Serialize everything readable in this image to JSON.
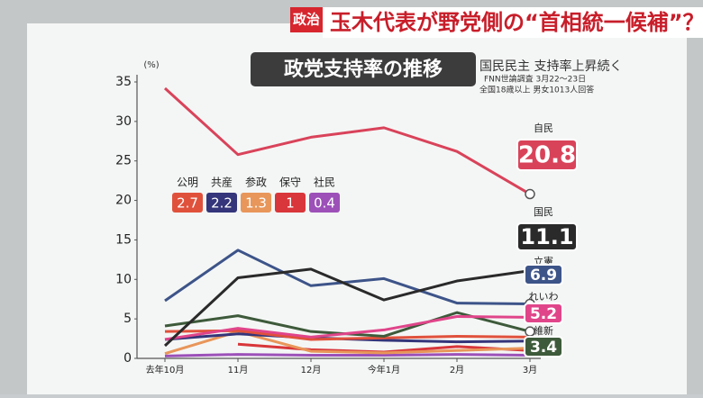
{
  "header": {
    "tag": "政治",
    "headline": "玉木代表が野党側の“首相統一候補”？"
  },
  "chart_data": {
    "type": "line",
    "title": "政党支持率の推移",
    "subtitle": "国民民主 支持率上昇続く",
    "notes": [
      "FNN世論調査 3月22～23日",
      "全国18歳以上 男女1013人回答"
    ],
    "y_label": "(%)",
    "categories": [
      "去年10月",
      "11月",
      "12月",
      "今年1月",
      "2月",
      "3月"
    ],
    "ylim": [
      0,
      35
    ],
    "yticks": [
      0,
      5,
      10,
      15,
      20,
      25,
      30,
      35
    ],
    "series": [
      {
        "name": "自民",
        "color": "#d9435a",
        "values": [
          34.2,
          25.8,
          28.0,
          29.2,
          26.2,
          20.8
        ]
      },
      {
        "name": "国民",
        "color": "#2a2a2a",
        "values": [
          1.6,
          10.2,
          11.3,
          7.4,
          9.8,
          11.1
        ]
      },
      {
        "name": "立憲",
        "color": "#3d5489",
        "values": [
          7.3,
          13.7,
          9.2,
          10.1,
          7.0,
          6.9
        ]
      },
      {
        "name": "れいわ",
        "color": "#e0458a",
        "values": [
          2.4,
          3.8,
          2.7,
          3.6,
          5.3,
          5.2
        ]
      },
      {
        "name": "維新",
        "color": "#3d5a3a",
        "values": [
          4.1,
          5.4,
          3.4,
          2.8,
          5.8,
          3.4
        ]
      },
      {
        "name": "公明",
        "color": "#e0513c",
        "values": [
          3.4,
          3.5,
          2.4,
          2.6,
          2.8,
          2.7
        ]
      },
      {
        "name": "共産",
        "color": "#34357a",
        "values": [
          2.4,
          3.1,
          2.6,
          2.3,
          2.1,
          2.2
        ]
      },
      {
        "name": "参政",
        "color": "#e8965a",
        "values": [
          0.6,
          3.4,
          0.9,
          0.7,
          1.0,
          1.3
        ]
      },
      {
        "name": "保守",
        "color": "#d8363a",
        "values": [
          null,
          1.8,
          1.1,
          0.8,
          1.5,
          1.0
        ]
      },
      {
        "name": "社民",
        "color": "#9c50b8",
        "values": [
          0.3,
          0.5,
          0.4,
          0.4,
          0.5,
          0.4
        ]
      }
    ]
  }
}
